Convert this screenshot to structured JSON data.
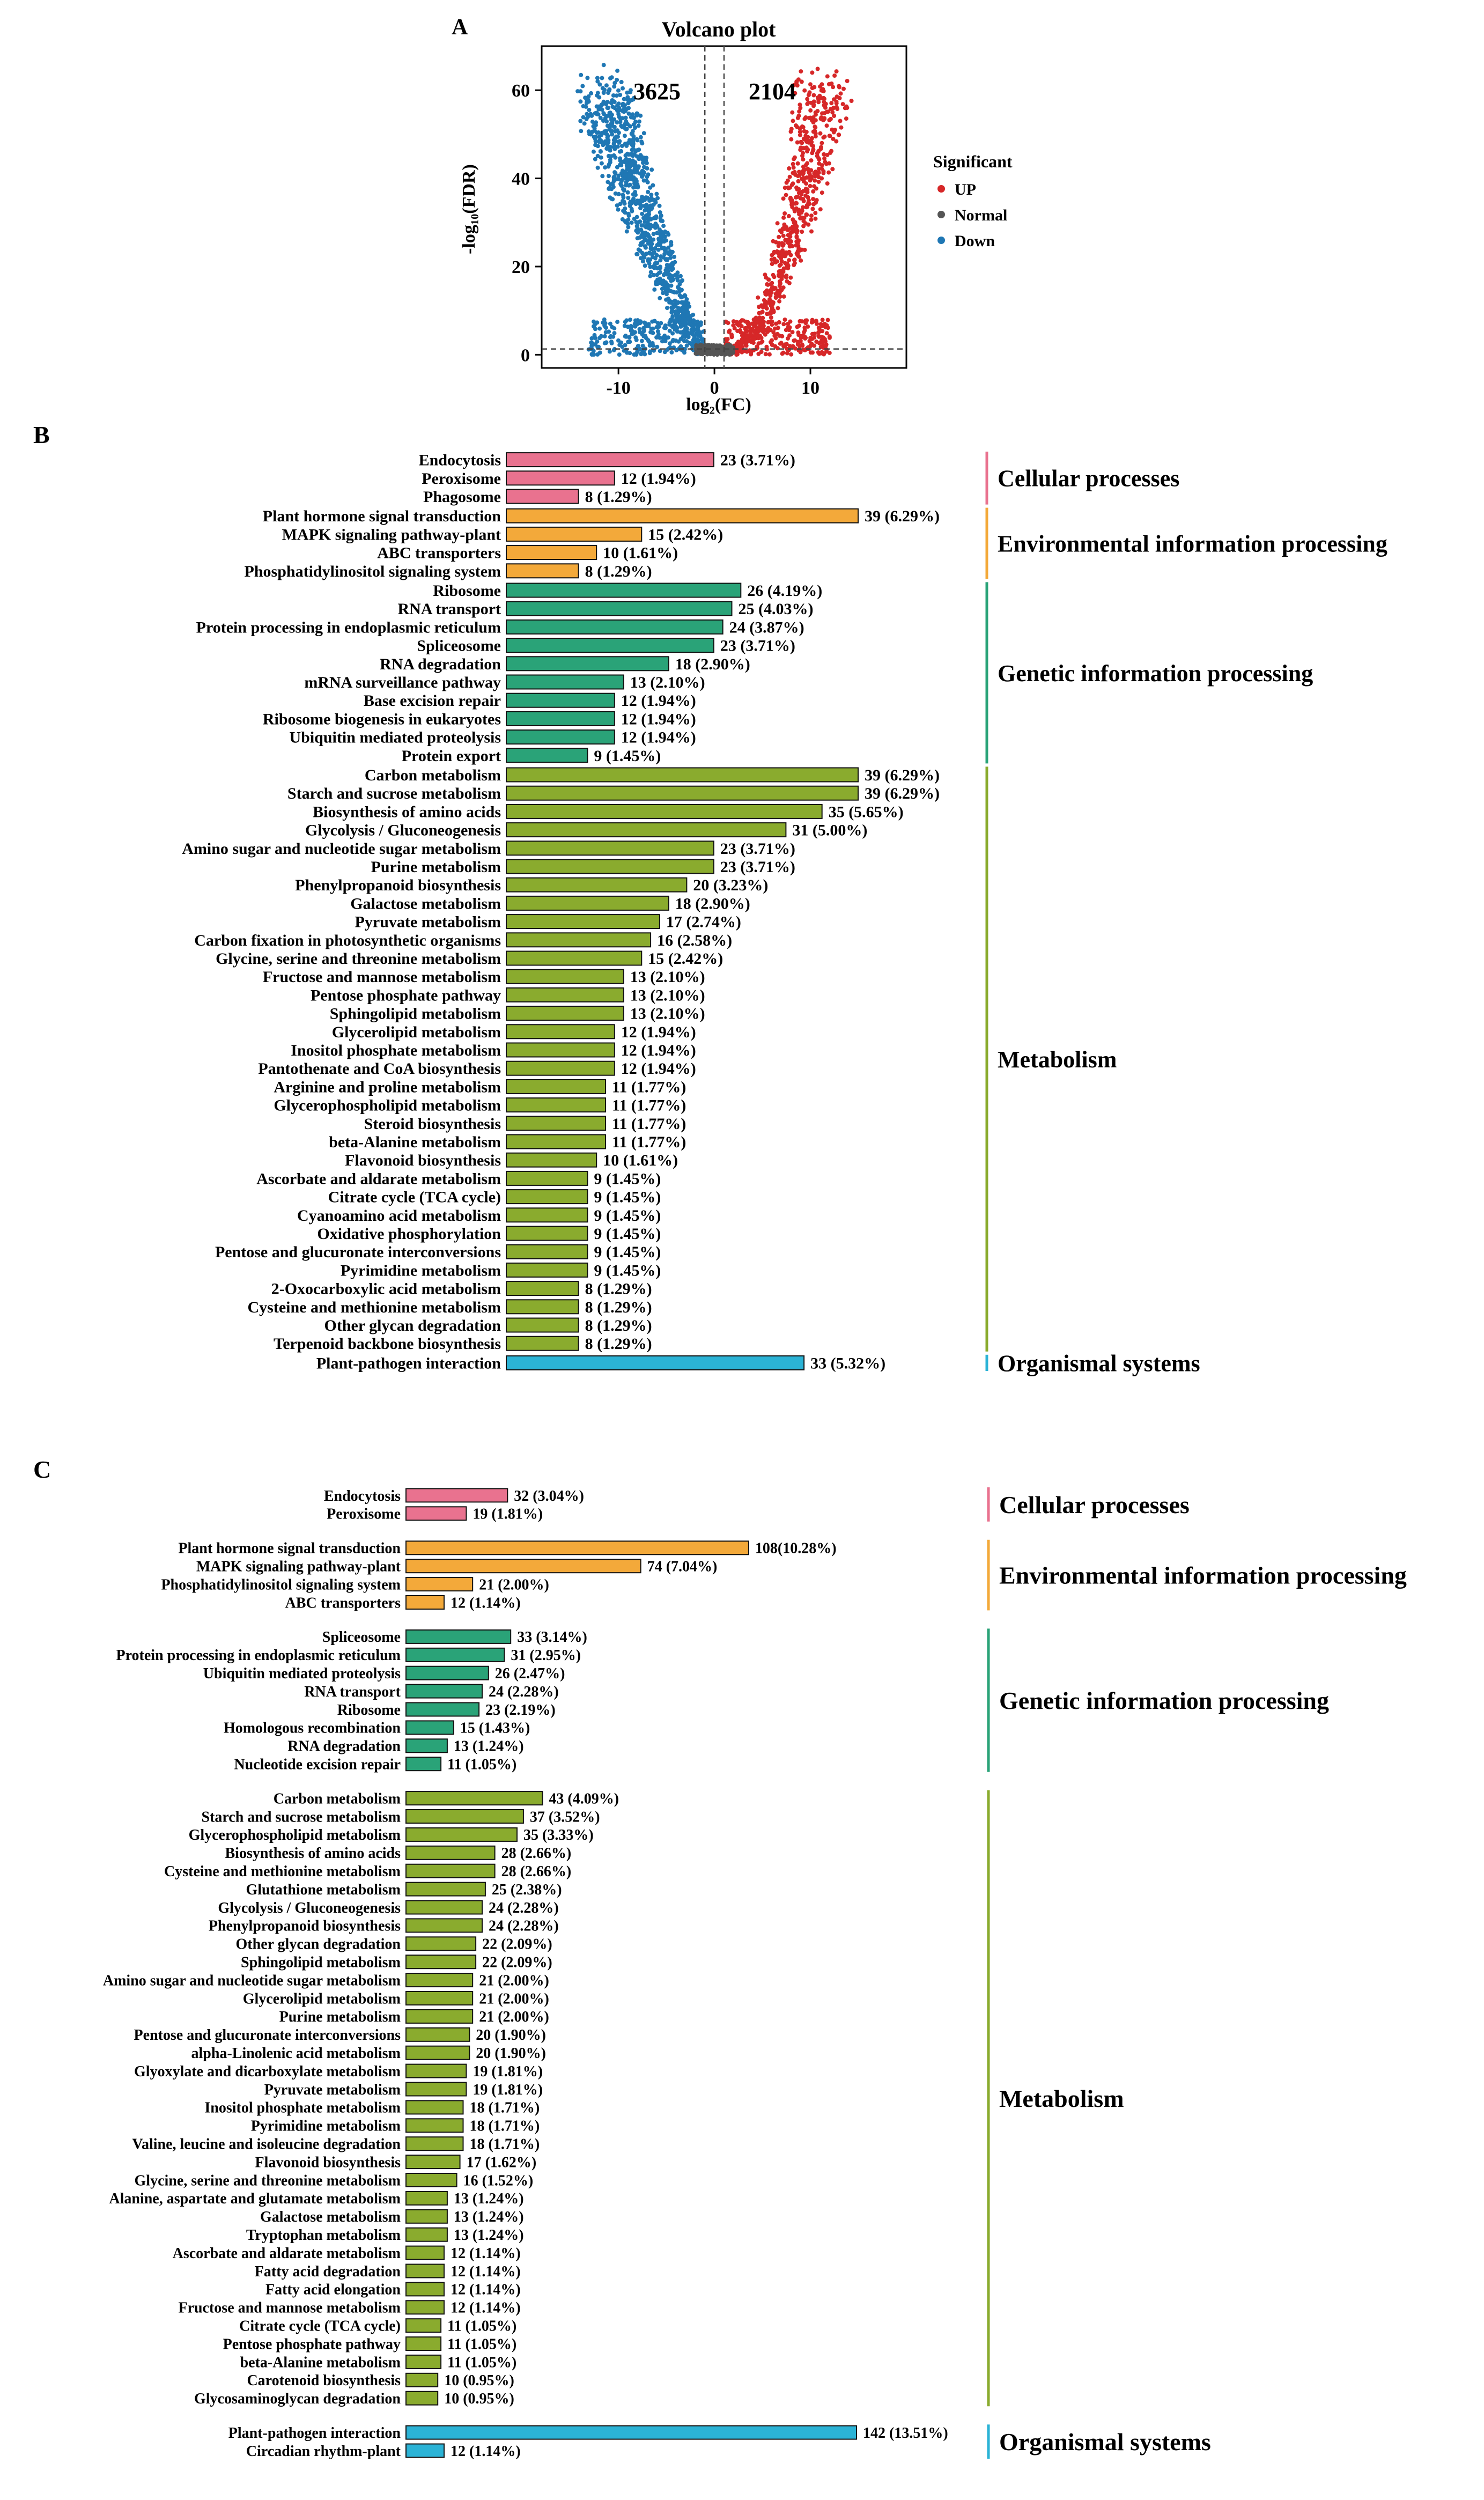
{
  "chart_data": [
    {
      "panel": "A",
      "type": "scatter",
      "title": "Volcano plot",
      "xlabel": "log₂(FC)",
      "ylabel": "-log₁₀(FDR)",
      "xlim": [
        -18,
        20
      ],
      "ylim": [
        -3,
        70
      ],
      "xticks": [
        -10,
        0,
        10
      ],
      "yticks": [
        0,
        20,
        40,
        60
      ],
      "counts": {
        "down": "3625",
        "up": "2104"
      },
      "thresholds": {
        "x": [
          -1,
          1
        ],
        "y": 1.3
      },
      "legend": {
        "title": "Significant",
        "items": [
          {
            "label": "UP",
            "color": "#d62728"
          },
          {
            "label": "Normal",
            "color": "#555555"
          },
          {
            "label": "Down",
            "color": "#1f77b4"
          }
        ]
      }
    },
    {
      "panel": "B",
      "type": "bar",
      "orientation": "horizontal",
      "max": 39,
      "groups": [
        {
          "name": "Cellular processes",
          "color": "#e9728f",
          "items": [
            {
              "label": "Endocytosis",
              "value": 23,
              "text": "23 (3.71%)"
            },
            {
              "label": "Peroxisome",
              "value": 12,
              "text": "12 (1.94%)"
            },
            {
              "label": "Phagosome",
              "value": 8,
              "text": "8 (1.29%)"
            }
          ]
        },
        {
          "name": "Environmental information processing",
          "color": "#f3a93a",
          "items": [
            {
              "label": "Plant hormone signal transduction",
              "value": 39,
              "text": "39 (6.29%)"
            },
            {
              "label": "MAPK signaling pathway-plant",
              "value": 15,
              "text": "15 (2.42%)"
            },
            {
              "label": "ABC transporters",
              "value": 10,
              "text": "10 (1.61%)"
            },
            {
              "label": "Phosphatidylinositol signaling system",
              "value": 8,
              "text": "8 (1.29%)"
            }
          ]
        },
        {
          "name": "Genetic information processing",
          "color": "#2aa378",
          "items": [
            {
              "label": "Ribosome",
              "value": 26,
              "text": "26 (4.19%)"
            },
            {
              "label": "RNA transport",
              "value": 25,
              "text": "25 (4.03%)"
            },
            {
              "label": "Protein processing in endoplasmic reticulum",
              "value": 24,
              "text": "24 (3.87%)"
            },
            {
              "label": "Spliceosome",
              "value": 23,
              "text": "23 (3.71%)"
            },
            {
              "label": "RNA degradation",
              "value": 18,
              "text": "18 (2.90%)"
            },
            {
              "label": "mRNA surveillance pathway",
              "value": 13,
              "text": "13 (2.10%)"
            },
            {
              "label": "Base excision repair",
              "value": 12,
              "text": "12 (1.94%)"
            },
            {
              "label": "Ribosome biogenesis in eukaryotes",
              "value": 12,
              "text": "12 (1.94%)"
            },
            {
              "label": "Ubiquitin mediated proteolysis",
              "value": 12,
              "text": "12 (1.94%)"
            },
            {
              "label": "Protein export",
              "value": 9,
              "text": "9 (1.45%)"
            }
          ]
        },
        {
          "name": "Metabolism",
          "color": "#8aab2e",
          "items": [
            {
              "label": "Carbon metabolism",
              "value": 39,
              "text": "39 (6.29%)"
            },
            {
              "label": "Starch and sucrose metabolism",
              "value": 39,
              "text": "39 (6.29%)"
            },
            {
              "label": "Biosynthesis of amino acids",
              "value": 35,
              "text": "35 (5.65%)"
            },
            {
              "label": "Glycolysis / Gluconeogenesis",
              "value": 31,
              "text": "31 (5.00%)"
            },
            {
              "label": "Amino sugar and nucleotide sugar metabolism",
              "value": 23,
              "text": "23 (3.71%)"
            },
            {
              "label": "Purine metabolism",
              "value": 23,
              "text": "23 (3.71%)"
            },
            {
              "label": "Phenylpropanoid biosynthesis",
              "value": 20,
              "text": "20 (3.23%)"
            },
            {
              "label": "Galactose metabolism",
              "value": 18,
              "text": "18 (2.90%)"
            },
            {
              "label": "Pyruvate metabolism",
              "value": 17,
              "text": "17 (2.74%)"
            },
            {
              "label": "Carbon fixation in photosynthetic organisms",
              "value": 16,
              "text": "16 (2.58%)"
            },
            {
              "label": "Glycine, serine and threonine metabolism",
              "value": 15,
              "text": "15 (2.42%)"
            },
            {
              "label": "Fructose and mannose metabolism",
              "value": 13,
              "text": "13 (2.10%)"
            },
            {
              "label": "Pentose phosphate pathway",
              "value": 13,
              "text": "13 (2.10%)"
            },
            {
              "label": "Sphingolipid metabolism",
              "value": 13,
              "text": "13 (2.10%)"
            },
            {
              "label": "Glycerolipid metabolism",
              "value": 12,
              "text": "12 (1.94%)"
            },
            {
              "label": "Inositol phosphate metabolism",
              "value": 12,
              "text": "12 (1.94%)"
            },
            {
              "label": "Pantothenate and CoA biosynthesis",
              "value": 12,
              "text": "12 (1.94%)"
            },
            {
              "label": "Arginine and proline metabolism",
              "value": 11,
              "text": "11 (1.77%)"
            },
            {
              "label": "Glycerophospholipid metabolism",
              "value": 11,
              "text": "11 (1.77%)"
            },
            {
              "label": "Steroid biosynthesis",
              "value": 11,
              "text": "11 (1.77%)"
            },
            {
              "label": "beta-Alanine metabolism",
              "value": 11,
              "text": "11 (1.77%)"
            },
            {
              "label": "Flavonoid biosynthesis",
              "value": 10,
              "text": "10 (1.61%)"
            },
            {
              "label": "Ascorbate and aldarate metabolism",
              "value": 9,
              "text": "9 (1.45%)"
            },
            {
              "label": "Citrate cycle (TCA cycle)",
              "value": 9,
              "text": "9 (1.45%)"
            },
            {
              "label": "Cyanoamino acid metabolism",
              "value": 9,
              "text": "9 (1.45%)"
            },
            {
              "label": "Oxidative phosphorylation",
              "value": 9,
              "text": "9 (1.45%)"
            },
            {
              "label": "Pentose and glucuronate interconversions",
              "value": 9,
              "text": "9 (1.45%)"
            },
            {
              "label": "Pyrimidine metabolism",
              "value": 9,
              "text": "9 (1.45%)"
            },
            {
              "label": "2-Oxocarboxylic acid metabolism",
              "value": 8,
              "text": "8 (1.29%)"
            },
            {
              "label": "Cysteine and methionine metabolism",
              "value": 8,
              "text": "8 (1.29%)"
            },
            {
              "label": "Other glycan degradation",
              "value": 8,
              "text": "8 (1.29%)"
            },
            {
              "label": "Terpenoid backbone biosynthesis",
              "value": 8,
              "text": "8 (1.29%)"
            }
          ]
        },
        {
          "name": "Organismal systems",
          "color": "#2bb3d6",
          "items": [
            {
              "label": "Plant-pathogen interaction",
              "value": 33,
              "text": "33 (5.32%)"
            }
          ]
        }
      ]
    },
    {
      "panel": "C",
      "type": "bar",
      "orientation": "horizontal",
      "max": 142,
      "groups": [
        {
          "name": "Cellular processes",
          "color": "#e9728f",
          "items": [
            {
              "label": "Endocytosis",
              "value": 32,
              "text": "32 (3.04%)"
            },
            {
              "label": "Peroxisome",
              "value": 19,
              "text": "19 (1.81%)"
            }
          ]
        },
        {
          "name": "Environmental information processing",
          "color": "#f3a93a",
          "items": [
            {
              "label": "Plant hormone signal transduction",
              "value": 108,
              "text": "108(10.28%)"
            },
            {
              "label": "MAPK signaling pathway-plant",
              "value": 74,
              "text": "74 (7.04%)"
            },
            {
              "label": "Phosphatidylinositol signaling system",
              "value": 21,
              "text": "21 (2.00%)"
            },
            {
              "label": "ABC transporters",
              "value": 12,
              "text": "12 (1.14%)"
            }
          ]
        },
        {
          "name": "Genetic information processing",
          "color": "#2aa378",
          "items": [
            {
              "label": "Spliceosome",
              "value": 33,
              "text": "33 (3.14%)"
            },
            {
              "label": "Protein processing in endoplasmic reticulum",
              "value": 31,
              "text": "31 (2.95%)"
            },
            {
              "label": "Ubiquitin mediated proteolysis",
              "value": 26,
              "text": "26 (2.47%)"
            },
            {
              "label": "RNA transport",
              "value": 24,
              "text": "24 (2.28%)"
            },
            {
              "label": "Ribosome",
              "value": 23,
              "text": "23 (2.19%)"
            },
            {
              "label": "Homologous recombination",
              "value": 15,
              "text": "15 (1.43%)"
            },
            {
              "label": "RNA degradation",
              "value": 13,
              "text": "13 (1.24%)"
            },
            {
              "label": "Nucleotide excision repair",
              "value": 11,
              "text": "11 (1.05%)"
            }
          ]
        },
        {
          "name": "Metabolism",
          "color": "#8aab2e",
          "items": [
            {
              "label": "Carbon metabolism",
              "value": 43,
              "text": "43 (4.09%)"
            },
            {
              "label": "Starch and sucrose metabolism",
              "value": 37,
              "text": "37 (3.52%)"
            },
            {
              "label": "Glycerophospholipid metabolism",
              "value": 35,
              "text": "35 (3.33%)"
            },
            {
              "label": "Biosynthesis of amino acids",
              "value": 28,
              "text": "28 (2.66%)"
            },
            {
              "label": "Cysteine and methionine metabolism",
              "value": 28,
              "text": "28 (2.66%)"
            },
            {
              "label": "Glutathione metabolism",
              "value": 25,
              "text": "25 (2.38%)"
            },
            {
              "label": "Glycolysis / Gluconeogenesis",
              "value": 24,
              "text": "24 (2.28%)"
            },
            {
              "label": "Phenylpropanoid biosynthesis",
              "value": 24,
              "text": "24 (2.28%)"
            },
            {
              "label": "Other glycan degradation",
              "value": 22,
              "text": "22 (2.09%)"
            },
            {
              "label": "Sphingolipid metabolism",
              "value": 22,
              "text": "22 (2.09%)"
            },
            {
              "label": "Amino sugar and nucleotide sugar metabolism",
              "value": 21,
              "text": "21 (2.00%)"
            },
            {
              "label": "Glycerolipid metabolism",
              "value": 21,
              "text": "21 (2.00%)"
            },
            {
              "label": "Purine metabolism",
              "value": 21,
              "text": "21 (2.00%)"
            },
            {
              "label": "Pentose and glucuronate interconversions",
              "value": 20,
              "text": "20 (1.90%)"
            },
            {
              "label": "alpha-Linolenic acid metabolism",
              "value": 20,
              "text": "20 (1.90%)"
            },
            {
              "label": "Glyoxylate and dicarboxylate metabolism",
              "value": 19,
              "text": "19 (1.81%)"
            },
            {
              "label": "Pyruvate metabolism",
              "value": 19,
              "text": "19 (1.81%)"
            },
            {
              "label": "Inositol phosphate metabolism",
              "value": 18,
              "text": "18 (1.71%)"
            },
            {
              "label": "Pyrimidine metabolism",
              "value": 18,
              "text": "18 (1.71%)"
            },
            {
              "label": "Valine, leucine and isoleucine degradation",
              "value": 18,
              "text": "18 (1.71%)"
            },
            {
              "label": "Flavonoid biosynthesis",
              "value": 17,
              "text": "17 (1.62%)"
            },
            {
              "label": "Glycine, serine and threonine metabolism",
              "value": 16,
              "text": "16 (1.52%)"
            },
            {
              "label": "Alanine, aspartate and glutamate metabolism",
              "value": 13,
              "text": "13 (1.24%)"
            },
            {
              "label": "Galactose metabolism",
              "value": 13,
              "text": "13 (1.24%)"
            },
            {
              "label": "Tryptophan metabolism",
              "value": 13,
              "text": "13 (1.24%)"
            },
            {
              "label": "Ascorbate and aldarate metabolism",
              "value": 12,
              "text": "12 (1.14%)"
            },
            {
              "label": "Fatty acid degradation",
              "value": 12,
              "text": "12 (1.14%)"
            },
            {
              "label": "Fatty acid elongation",
              "value": 12,
              "text": "12 (1.14%)"
            },
            {
              "label": "Fructose and mannose metabolism",
              "value": 12,
              "text": "12 (1.14%)"
            },
            {
              "label": "Citrate cycle (TCA cycle)",
              "value": 11,
              "text": "11 (1.05%)"
            },
            {
              "label": "Pentose phosphate pathway",
              "value": 11,
              "text": "11 (1.05%)"
            },
            {
              "label": "beta-Alanine metabolism",
              "value": 11,
              "text": "11 (1.05%)"
            },
            {
              "label": "Carotenoid biosynthesis",
              "value": 10,
              "text": "10 (0.95%)"
            },
            {
              "label": "Glycosaminoglycan degradation",
              "value": 10,
              "text": "10 (0.95%)"
            }
          ]
        },
        {
          "name": "Organismal systems",
          "color": "#2bb3d6",
          "items": [
            {
              "label": "Plant-pathogen interaction",
              "value": 142,
              "text": "142 (13.51%)"
            },
            {
              "label": "Circadian rhythm-plant",
              "value": 12,
              "text": "12 (1.14%)"
            }
          ]
        }
      ]
    }
  ]
}
